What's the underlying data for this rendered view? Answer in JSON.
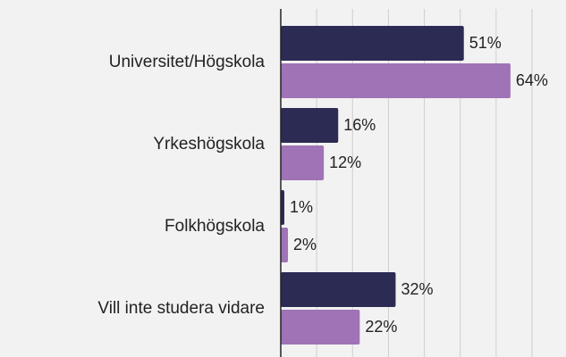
{
  "chart_data": {
    "type": "hbar",
    "categories": [
      "Universitet/Högskola",
      "Yrkeshögskola",
      "Folkhögskola",
      "Vill inte studera vidare"
    ],
    "series": [
      {
        "color": "#2c2b54",
        "values": [
          51,
          16,
          1,
          32
        ],
        "value_labels": [
          "51%",
          "16%",
          "1%",
          "32%"
        ]
      },
      {
        "color": "#9f73b6",
        "values": [
          64,
          12,
          2,
          22
        ],
        "value_labels": [
          "64%",
          "12%",
          "2%",
          "22%"
        ]
      }
    ],
    "xlim": [
      0,
      70
    ],
    "xticks": [
      0,
      10,
      20,
      30,
      40,
      50,
      60,
      70
    ],
    "grid": true
  }
}
